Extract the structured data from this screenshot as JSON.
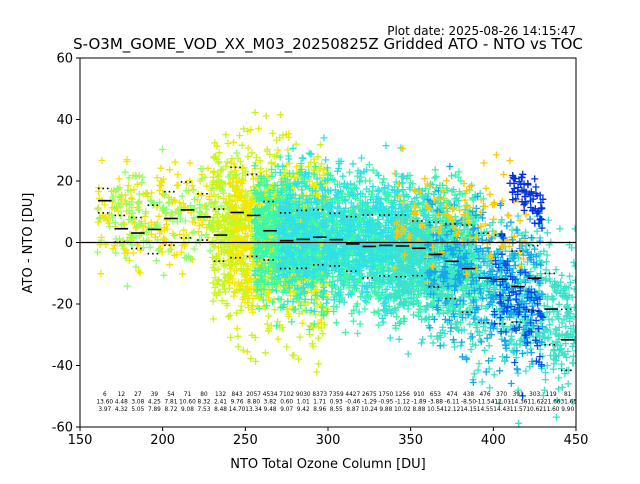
{
  "plot_date": "Plot date: 2025-08-26 14:15:47",
  "chart_data": {
    "type": "scatter",
    "title": "S-O3M_GOME_VOD_XX_M03_20250825Z Gridded ATO - NTO vs TOC",
    "xlabel": "NTO Total Ozone Column [DU]",
    "ylabel": "ATO - NTO [DU]",
    "xlim": [
      150,
      450
    ],
    "ylim": [
      -60,
      60
    ],
    "xticks": [
      150,
      200,
      250,
      300,
      350,
      400,
      450
    ],
    "yticks": [
      -60,
      -40,
      -20,
      0,
      20,
      40,
      60
    ],
    "grid": false,
    "zero_line": 0,
    "bin_edges": [
      160,
      170,
      180,
      190,
      200,
      210,
      220,
      230,
      240,
      250,
      260,
      270,
      280,
      290,
      300,
      310,
      320,
      330,
      340,
      350,
      360,
      370,
      380,
      390,
      400,
      410,
      420,
      430,
      440,
      450
    ],
    "bin_mean": [
      13.6,
      4.48,
      3.08,
      4.25,
      7.81,
      10.6,
      8.32,
      2.41,
      9.76,
      8.8,
      3.82,
      0.6,
      1.01,
      1.71,
      0.93,
      -0.46,
      -1.29,
      -0.95,
      -1.12,
      -1.89,
      -3.88,
      -6.11,
      -8.5,
      -11.54,
      -12.01,
      -14.36,
      -11.62,
      -21.66,
      -31.65
    ],
    "bin_std": [
      3.97,
      4.32,
      5.05,
      7.89,
      8.72,
      9.08,
      7.53,
      8.48,
      14.7,
      13.34,
      9.48,
      9.07,
      9.42,
      8.96,
      8.55,
      8.87,
      10.24,
      9.88,
      10.02,
      8.88,
      10.54,
      12.12,
      14.15,
      14.55,
      14.43,
      11.57,
      10.62,
      11.6,
      9.9
    ],
    "bin_counts": [
      6,
      12,
      27,
      39,
      54,
      71,
      80,
      132,
      843,
      2057,
      4534,
      7102,
      9030,
      8373,
      7359,
      4427,
      2675,
      1750,
      1256,
      910,
      653,
      474,
      438,
      476,
      370,
      391,
      303,
      119,
      81
    ],
    "bin_labels": [
      [
        "6",
        "13.60",
        "3.97"
      ],
      [
        "12",
        "4.48",
        "4.32"
      ],
      [
        "27",
        "3.08",
        "5.05"
      ],
      [
        "39",
        "4.25",
        "7.89"
      ],
      [
        "54",
        "7.81",
        "8.72"
      ],
      [
        "71",
        "10.60",
        "9.08"
      ],
      [
        "80",
        "8.32",
        "7.53"
      ],
      [
        "132",
        "2.41",
        "8.48"
      ],
      [
        "843",
        "9.76",
        "14.70"
      ],
      [
        "2057",
        "8.80",
        "13.34"
      ],
      [
        "4534",
        "3.82",
        "9.48"
      ],
      [
        "7102",
        "0.60",
        "9.07"
      ],
      [
        "9030",
        "1.01",
        "9.42"
      ],
      [
        "8373",
        "1.71",
        "8.96"
      ],
      [
        "7359",
        "0.93",
        "8.55"
      ],
      [
        "4427",
        "-0.46",
        "8.87"
      ],
      [
        "2675",
        "-1.29",
        "10.24"
      ],
      [
        "1750",
        "-0.95",
        "9.88"
      ],
      [
        "1256",
        "-1.12",
        "10.02"
      ],
      [
        "910",
        "-1.89",
        "8.88"
      ],
      [
        "653",
        "-3.88",
        "10.54"
      ],
      [
        "474",
        "-6.11",
        "12.12"
      ],
      [
        "438",
        "-8.50",
        "14.15"
      ],
      [
        "476",
        "-11.54",
        "14.55"
      ],
      [
        "370",
        "-12.01",
        "14.43"
      ],
      [
        "391",
        "-14.36",
        "11.57"
      ],
      [
        "303",
        "-11.62",
        "10.62"
      ],
      [
        "119",
        "-21.66",
        "11.60"
      ],
      [
        "81",
        "-31.65",
        "9.90"
      ]
    ],
    "scatter_clouds": [
      {
        "x_range": [
          160,
          245
        ],
        "y_center_at_start": 6,
        "y_center_at_end": 12,
        "spread": 10,
        "color": "#f2e600",
        "count": 260
      },
      {
        "x_range": [
          160,
          245
        ],
        "y_center_at_start": 6,
        "y_center_at_end": 12,
        "spread": 9,
        "color": "#8cff6e",
        "count": 160
      },
      {
        "x_range": [
          230,
          300
        ],
        "y_center_at_start": 5,
        "y_center_at_end": -2,
        "spread": 16,
        "color": "#c8f51e",
        "count": 900
      },
      {
        "x_range": [
          240,
          300
        ],
        "y_center_at_start": 2,
        "y_center_at_end": 0,
        "spread": 14,
        "color": "#f5e800",
        "count": 500
      },
      {
        "x_range": [
          255,
          390
        ],
        "y_center_at_start": 2,
        "y_center_at_end": -4,
        "spread": 11,
        "color": "#3cf5a8",
        "count": 2400
      },
      {
        "x_range": [
          270,
          360
        ],
        "y_center_at_start": 4,
        "y_center_at_end": -2,
        "spread": 12,
        "color": "#30e0e8",
        "count": 900
      },
      {
        "x_range": [
          340,
          450
        ],
        "y_center_at_start": -3,
        "y_center_at_end": -25,
        "spread": 14,
        "color": "#40e0c8",
        "count": 900
      },
      {
        "x_range": [
          360,
          430
        ],
        "y_center_at_start": -6,
        "y_center_at_end": -20,
        "spread": 14,
        "color": "#12a8f0",
        "count": 350
      },
      {
        "x_range": [
          340,
          420
        ],
        "y_center_at_start": 10,
        "y_center_at_end": 6,
        "spread": 9,
        "color": "#ffc800",
        "count": 120
      },
      {
        "x_range": [
          400,
          430
        ],
        "y_center_at_start": -15,
        "y_center_at_end": -30,
        "spread": 10,
        "color": "#0050e6",
        "count": 90
      },
      {
        "x_range": [
          410,
          430
        ],
        "y_center_at_start": 18,
        "y_center_at_end": 12,
        "spread": 4,
        "color": "#0030e0",
        "count": 60
      }
    ]
  }
}
